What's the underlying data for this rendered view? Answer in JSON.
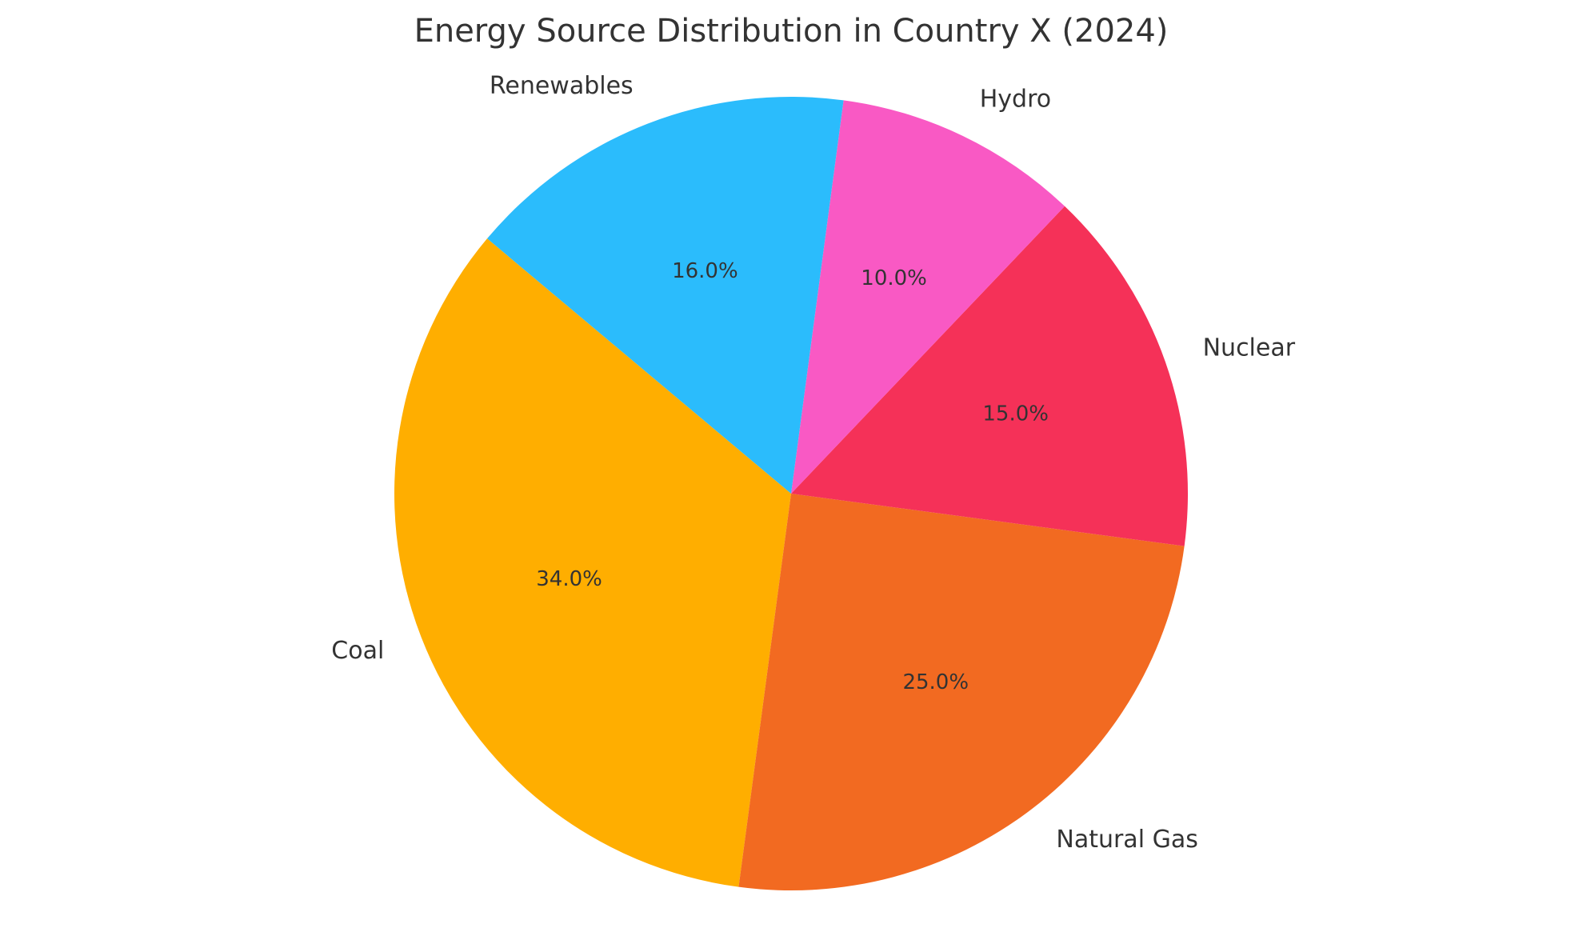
{
  "chart_data": {
    "type": "pie",
    "title": "Energy Source Distribution in Country X (2024)",
    "categories": [
      "Coal",
      "Natural Gas",
      "Nuclear",
      "Hydro",
      "Renewables"
    ],
    "values": [
      34.0,
      25.0,
      15.0,
      10.0,
      16.0
    ],
    "value_labels": [
      "34.0%",
      "25.0%",
      "15.0%",
      "10.0%",
      "16.0%"
    ],
    "colors": [
      "#FFAE00",
      "#F26A21",
      "#F53158",
      "#F959C4",
      "#2BBCFC"
    ],
    "start_angle_deg": 140,
    "direction": "counterclockwise",
    "legend": "none"
  }
}
